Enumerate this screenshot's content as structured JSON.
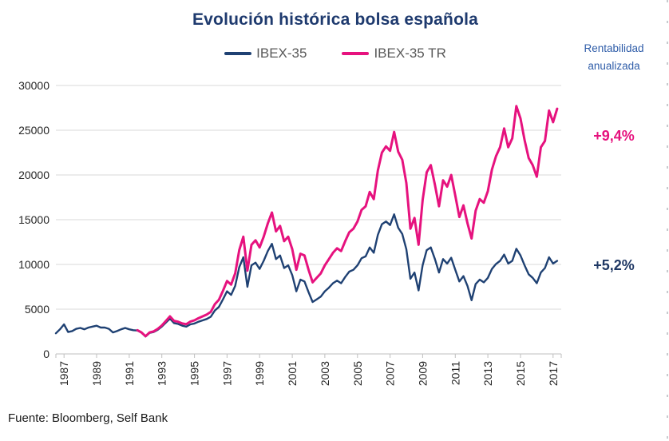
{
  "title": "Evolución histórica bolsa española",
  "legend": [
    {
      "label": "IBEX-35",
      "color": "#1F4173"
    },
    {
      "label": "IBEX-35 TR",
      "color": "#E6127E"
    }
  ],
  "right_panel": {
    "heading": "Rentabilidad anualizada",
    "items": [
      {
        "label": "+9,4%",
        "color": "#E6127E",
        "series": "IBEX-35 TR"
      },
      {
        "label": "+5,2%",
        "color": "#1F3864",
        "series": "IBEX-35"
      }
    ]
  },
  "source": "Fuente: Bloomberg, Self Bank",
  "colors": {
    "title": "#1E3A6E",
    "heading_blue": "#2E5CA8",
    "gridline": "#D9D9D9",
    "axis": "#BFBFBF",
    "tick_label": "#262626"
  },
  "chart_data": {
    "type": "line",
    "title": "Evolución histórica bolsa española",
    "xlabel": "",
    "ylabel": "",
    "legend_position": "top",
    "grid": "horizontal",
    "xlim": [
      1987,
      2018
    ],
    "ylim": [
      0,
      30000
    ],
    "x_ticks": [
      1987,
      1989,
      1991,
      1993,
      1995,
      1997,
      1999,
      2001,
      2003,
      2005,
      2007,
      2009,
      2011,
      2013,
      2015,
      2017
    ],
    "y_ticks": [
      0,
      5000,
      10000,
      15000,
      20000,
      25000,
      30000
    ],
    "series": [
      {
        "name": "IBEX-35",
        "color": "#1F4173",
        "stroke_width": 2.4,
        "start_year": 1987.0,
        "interval_years": 0.25,
        "values": [
          2300,
          2750,
          3300,
          2450,
          2550,
          2800,
          2900,
          2750,
          2950,
          3050,
          3150,
          2950,
          2950,
          2800,
          2400,
          2550,
          2750,
          2900,
          2750,
          2650,
          2620,
          2380,
          1950,
          2350,
          2450,
          2700,
          3050,
          3500,
          3950,
          3450,
          3350,
          3150,
          3050,
          3300,
          3400,
          3600,
          3750,
          3900,
          4150,
          4850,
          5250,
          6100,
          7000,
          6600,
          7600,
          9700,
          10800,
          7500,
          9900,
          10200,
          9500,
          10400,
          11500,
          12300,
          10600,
          11000,
          9600,
          9900,
          8800,
          7000,
          8300,
          8100,
          6900,
          5800,
          6100,
          6400,
          7000,
          7400,
          7900,
          8200,
          7900,
          8600,
          9200,
          9400,
          9900,
          10700,
          10900,
          11900,
          11300,
          13300,
          14500,
          14800,
          14400,
          15600,
          14100,
          13400,
          11700,
          8400,
          9100,
          7100,
          9900,
          11600,
          11900,
          10600,
          9100,
          10600,
          10100,
          10750,
          9400,
          8100,
          8700,
          7600,
          6000,
          7800,
          8300,
          8000,
          8500,
          9500,
          10050,
          10400,
          11100,
          10100,
          10400,
          11750,
          11000,
          9900,
          8900,
          8500,
          7900,
          9100,
          9600,
          10800,
          10100,
          10400
        ]
      },
      {
        "name": "IBEX-35 TR",
        "color": "#E6127E",
        "stroke_width": 3,
        "start_year": 1992.0,
        "interval_years": 0.25,
        "values": [
          2650,
          2400,
          1980,
          2400,
          2520,
          2800,
          3180,
          3680,
          4200,
          3700,
          3600,
          3400,
          3320,
          3620,
          3760,
          4000,
          4200,
          4400,
          4700,
          5550,
          6050,
          7050,
          8150,
          7750,
          9000,
          11600,
          13100,
          9300,
          12200,
          12700,
          11900,
          13100,
          14600,
          15800,
          13700,
          14300,
          12600,
          13100,
          11700,
          9400,
          11200,
          11000,
          9400,
          8000,
          8500,
          9000,
          9900,
          10600,
          11300,
          11800,
          11500,
          12600,
          13600,
          14000,
          14800,
          16100,
          16500,
          18100,
          17300,
          20500,
          22500,
          23200,
          22700,
          24800,
          22600,
          21700,
          19100,
          14000,
          15200,
          12200,
          17200,
          20300,
          21100,
          18900,
          16500,
          19400,
          18700,
          20000,
          17700,
          15300,
          16600,
          14600,
          12900,
          16000,
          17300,
          16900,
          18200,
          20600,
          22100,
          23100,
          25200,
          23100,
          24100,
          27700,
          26300,
          23900,
          21900,
          21100,
          19800,
          23100,
          23800,
          27200,
          25900,
          27400
        ]
      }
    ],
    "annotations": [
      {
        "text": "+9,4%",
        "series": "IBEX-35 TR"
      },
      {
        "text": "+5,2%",
        "series": "IBEX-35"
      }
    ]
  }
}
